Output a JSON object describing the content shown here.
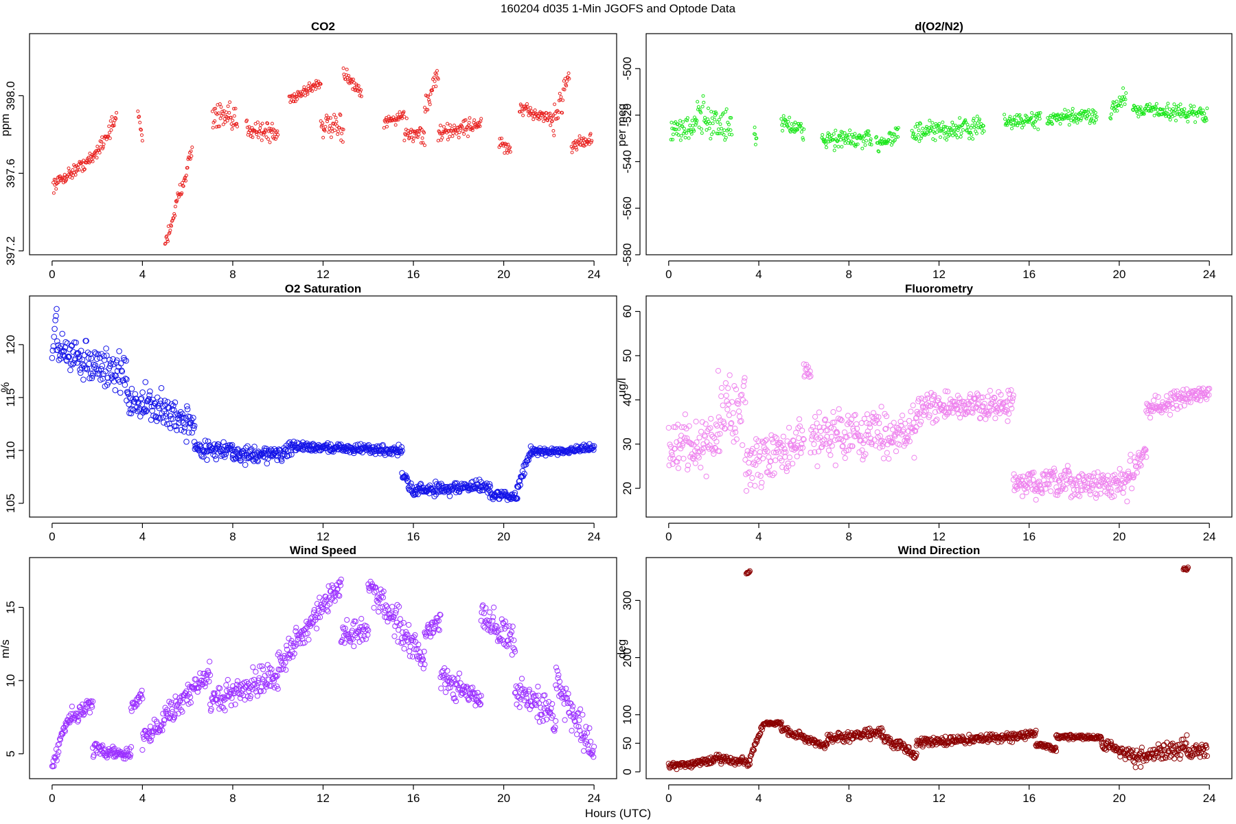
{
  "figure": {
    "title": "160204   d035   1-Min  JGOFS and Optode Data",
    "xlabel": "Hours (UTC)"
  },
  "chart_data": [
    {
      "type": "scatter",
      "title": "CO2",
      "ylabel": "ppm",
      "color": "#e8211f",
      "marker_r": 2.0,
      "xlim": [
        -1,
        25
      ],
      "ylim": [
        397.18,
        398.32
      ],
      "xticks": [
        0,
        4,
        8,
        12,
        16,
        20,
        24
      ],
      "yticks": [
        397.2,
        397.6,
        398.0
      ],
      "ytick_labels": [
        "397.2",
        "397.6",
        "398.0"
      ],
      "segments": [
        {
          "x0": 0.05,
          "x1": 1.8,
          "y0": 397.54,
          "y1": 397.68,
          "noise": 0.03
        },
        {
          "x0": 1.8,
          "x1": 2.85,
          "y0": 397.68,
          "y1": 397.88,
          "noise": 0.04
        },
        {
          "x0": 3.8,
          "x1": 4.0,
          "y0": 397.92,
          "y1": 397.78,
          "noise": 0.02
        },
        {
          "x0": 5.0,
          "x1": 6.2,
          "y0": 397.23,
          "y1": 397.72,
          "noise": 0.04
        },
        {
          "x0": 7.1,
          "x1": 8.2,
          "y0": 397.9,
          "y1": 397.86,
          "noise": 0.07
        },
        {
          "x0": 8.6,
          "x1": 10.0,
          "y0": 397.84,
          "y1": 397.8,
          "noise": 0.05
        },
        {
          "x0": 10.5,
          "x1": 11.9,
          "y0": 397.98,
          "y1": 398.07,
          "noise": 0.03
        },
        {
          "x0": 11.9,
          "x1": 12.9,
          "y0": 397.85,
          "y1": 397.82,
          "noise": 0.06
        },
        {
          "x0": 12.9,
          "x1": 13.7,
          "y0": 398.12,
          "y1": 398.0,
          "noise": 0.03
        },
        {
          "x0": 14.7,
          "x1": 15.6,
          "y0": 397.86,
          "y1": 397.9,
          "noise": 0.03
        },
        {
          "x0": 15.6,
          "x1": 16.5,
          "y0": 397.82,
          "y1": 397.8,
          "noise": 0.05
        },
        {
          "x0": 16.5,
          "x1": 17.1,
          "y0": 397.92,
          "y1": 398.12,
          "noise": 0.06
        },
        {
          "x0": 17.1,
          "x1": 19.0,
          "y0": 397.8,
          "y1": 397.86,
          "noise": 0.04
        },
        {
          "x0": 19.8,
          "x1": 20.3,
          "y0": 397.75,
          "y1": 397.72,
          "noise": 0.04
        },
        {
          "x0": 20.7,
          "x1": 22.2,
          "y0": 397.93,
          "y1": 397.88,
          "noise": 0.03
        },
        {
          "x0": 22.2,
          "x1": 22.9,
          "y0": 397.85,
          "y1": 398.12,
          "noise": 0.07
        },
        {
          "x0": 23.0,
          "x1": 23.9,
          "y0": 397.74,
          "y1": 397.78,
          "noise": 0.03
        }
      ]
    },
    {
      "type": "scatter",
      "title": "d(O2/N2)",
      "ylabel": "per meg",
      "color": "#19e619",
      "marker_r": 2.0,
      "xlim": [
        -1,
        25
      ],
      "ylim": [
        -580,
        -485
      ],
      "xticks": [
        0,
        4,
        8,
        12,
        16,
        20,
        24
      ],
      "yticks": [
        -580,
        -560,
        -540,
        -520,
        -500
      ],
      "ytick_labels": [
        "-580",
        "-560",
        "-540",
        "-520",
        "-500"
      ],
      "segments": [
        {
          "x0": 0.1,
          "x1": 1.2,
          "y0": -528,
          "y1": -524,
          "noise": 5
        },
        {
          "x0": 1.2,
          "x1": 2.8,
          "y0": -520,
          "y1": -526,
          "noise": 8
        },
        {
          "x0": 3.8,
          "x1": 3.9,
          "y0": -526,
          "y1": -532,
          "noise": 3
        },
        {
          "x0": 5.0,
          "x1": 6.0,
          "y0": -522,
          "y1": -528,
          "noise": 4
        },
        {
          "x0": 6.8,
          "x1": 9.0,
          "y0": -530,
          "y1": -531,
          "noise": 4
        },
        {
          "x0": 9.2,
          "x1": 10.2,
          "y0": -532,
          "y1": -528,
          "noise": 4
        },
        {
          "x0": 10.8,
          "x1": 14.0,
          "y0": -528,
          "y1": -525,
          "noise": 4
        },
        {
          "x0": 14.9,
          "x1": 16.5,
          "y0": -523,
          "y1": -522,
          "noise": 3
        },
        {
          "x0": 16.8,
          "x1": 19.0,
          "y0": -522,
          "y1": -520,
          "noise": 3
        },
        {
          "x0": 19.6,
          "x1": 20.3,
          "y0": -518,
          "y1": -512,
          "noise": 4
        },
        {
          "x0": 20.6,
          "x1": 23.9,
          "y0": -517,
          "y1": -520,
          "noise": 3
        }
      ]
    },
    {
      "type": "scatter",
      "title": "O2 Saturation",
      "ylabel": "%",
      "color": "#1414e8",
      "marker_r": 3.8,
      "xlim": [
        -1,
        25
      ],
      "ylim": [
        103.7,
        124.6
      ],
      "xticks": [
        0,
        4,
        8,
        12,
        16,
        20,
        24
      ],
      "yticks": [
        105,
        110,
        115,
        120
      ],
      "ytick_labels": [
        "105",
        "110",
        "115",
        "120"
      ],
      "segments": [
        {
          "x0": 0.0,
          "x1": 0.2,
          "y0": 118.7,
          "y1": 123.5,
          "noise": 0.4
        },
        {
          "x0": 0.2,
          "x1": 3.3,
          "y0": 119.5,
          "y1": 117.0,
          "noise": 1.6
        },
        {
          "x0": 3.3,
          "x1": 6.3,
          "y0": 115.0,
          "y1": 112.5,
          "noise": 1.6
        },
        {
          "x0": 6.3,
          "x1": 8.0,
          "y0": 110.2,
          "y1": 110.0,
          "noise": 0.7
        },
        {
          "x0": 8.0,
          "x1": 10.6,
          "y0": 109.5,
          "y1": 109.8,
          "noise": 0.7
        },
        {
          "x0": 10.6,
          "x1": 15.5,
          "y0": 110.4,
          "y1": 110.0,
          "noise": 0.4
        },
        {
          "x0": 15.5,
          "x1": 16.1,
          "y0": 108.0,
          "y1": 105.5,
          "noise": 0.6
        },
        {
          "x0": 16.1,
          "x1": 19.4,
          "y0": 106.3,
          "y1": 106.6,
          "noise": 0.6
        },
        {
          "x0": 19.4,
          "x1": 20.6,
          "y0": 105.8,
          "y1": 105.6,
          "noise": 0.4
        },
        {
          "x0": 20.6,
          "x1": 21.2,
          "y0": 106.5,
          "y1": 110.0,
          "noise": 0.4
        },
        {
          "x0": 21.2,
          "x1": 24.0,
          "y0": 109.8,
          "y1": 110.2,
          "noise": 0.3
        }
      ]
    },
    {
      "type": "scatter",
      "title": "Fluorometry",
      "ylabel": "ug/l",
      "color": "#ee82ee",
      "marker_r": 3.6,
      "xlim": [
        -1,
        25
      ],
      "ylim": [
        13.5,
        63.5
      ],
      "xticks": [
        0,
        4,
        8,
        12,
        16,
        20,
        24
      ],
      "yticks": [
        20,
        30,
        40,
        50,
        60
      ],
      "ytick_labels": [
        "20",
        "30",
        "40",
        "50",
        "60"
      ],
      "segments": [
        {
          "x0": 0.0,
          "x1": 2.2,
          "y0": 30,
          "y1": 30,
          "noise": 6
        },
        {
          "x0": 2.2,
          "x1": 3.4,
          "y0": 38,
          "y1": 36,
          "noise": 8
        },
        {
          "x0": 3.4,
          "x1": 6.0,
          "y0": 25,
          "y1": 30,
          "noise": 5
        },
        {
          "x0": 6.0,
          "x1": 6.3,
          "y0": 47,
          "y1": 46,
          "noise": 2
        },
        {
          "x0": 6.3,
          "x1": 11.0,
          "y0": 32,
          "y1": 33,
          "noise": 5
        },
        {
          "x0": 11.0,
          "x1": 15.3,
          "y0": 38,
          "y1": 39,
          "noise": 3
        },
        {
          "x0": 15.3,
          "x1": 20.4,
          "y0": 21,
          "y1": 21,
          "noise": 3
        },
        {
          "x0": 20.4,
          "x1": 21.2,
          "y0": 23,
          "y1": 28,
          "noise": 3
        },
        {
          "x0": 21.2,
          "x1": 24.0,
          "y0": 38,
          "y1": 42,
          "noise": 2
        }
      ]
    },
    {
      "type": "scatter",
      "title": "Wind Speed",
      "ylabel": "m/s",
      "color": "#9b30ff",
      "marker_r": 3.6,
      "xlim": [
        -1,
        25
      ],
      "ylim": [
        3.3,
        18.4
      ],
      "xticks": [
        0,
        4,
        8,
        12,
        16,
        20,
        24
      ],
      "yticks": [
        5,
        10,
        15
      ],
      "ytick_labels": [
        "5",
        "10",
        "15"
      ],
      "segments": [
        {
          "x0": 0.0,
          "x1": 0.6,
          "y0": 4.0,
          "y1": 7.0,
          "noise": 0.4
        },
        {
          "x0": 0.6,
          "x1": 1.8,
          "y0": 7.2,
          "y1": 8.5,
          "noise": 0.5
        },
        {
          "x0": 1.8,
          "x1": 3.5,
          "y0": 5.3,
          "y1": 5.0,
          "noise": 0.4
        },
        {
          "x0": 3.5,
          "x1": 4.0,
          "y0": 8.0,
          "y1": 9.0,
          "noise": 0.5
        },
        {
          "x0": 4.0,
          "x1": 7.0,
          "y0": 6.0,
          "y1": 10.5,
          "noise": 0.7
        },
        {
          "x0": 7.0,
          "x1": 10.0,
          "y0": 8.5,
          "y1": 10.5,
          "noise": 0.9
        },
        {
          "x0": 10.0,
          "x1": 12.8,
          "y0": 11.0,
          "y1": 16.5,
          "noise": 0.9
        },
        {
          "x0": 12.8,
          "x1": 14.0,
          "y0": 13.0,
          "y1": 13.5,
          "noise": 0.8
        },
        {
          "x0": 14.0,
          "x1": 16.5,
          "y0": 16.5,
          "y1": 11.5,
          "noise": 1.0
        },
        {
          "x0": 16.5,
          "x1": 17.2,
          "y0": 13.0,
          "y1": 14.0,
          "noise": 0.6
        },
        {
          "x0": 17.2,
          "x1": 19.0,
          "y0": 10.3,
          "y1": 8.5,
          "noise": 0.8
        },
        {
          "x0": 19.0,
          "x1": 20.5,
          "y0": 14.5,
          "y1": 12.5,
          "noise": 1.0
        },
        {
          "x0": 20.5,
          "x1": 22.3,
          "y0": 9.5,
          "y1": 7.5,
          "noise": 1.0
        },
        {
          "x0": 22.3,
          "x1": 24.0,
          "y0": 10.0,
          "y1": 5.0,
          "noise": 1.2
        }
      ]
    },
    {
      "type": "scatter",
      "title": "Wind Direction",
      "ylabel": "deg",
      "color": "#8b0000",
      "marker_r": 3.6,
      "xlim": [
        -1,
        25
      ],
      "ylim": [
        -12,
        375
      ],
      "xticks": [
        0,
        4,
        8,
        12,
        16,
        20,
        24
      ],
      "yticks": [
        0,
        50,
        100,
        200,
        300
      ],
      "ytick_labels": [
        "0",
        "50",
        "100",
        "200",
        "300"
      ],
      "segments": [
        {
          "x0": 0.0,
          "x1": 2.0,
          "y0": 10,
          "y1": 20,
          "noise": 6
        },
        {
          "x0": 2.0,
          "x1": 3.6,
          "y0": 25,
          "y1": 15,
          "noise": 8
        },
        {
          "x0": 3.45,
          "x1": 3.6,
          "y0": 345,
          "y1": 350,
          "noise": 4
        },
        {
          "x0": 3.6,
          "x1": 4.2,
          "y0": 25,
          "y1": 80,
          "noise": 6
        },
        {
          "x0": 4.2,
          "x1": 5.0,
          "y0": 85,
          "y1": 85,
          "noise": 3
        },
        {
          "x0": 5.0,
          "x1": 7.0,
          "y0": 75,
          "y1": 45,
          "noise": 6
        },
        {
          "x0": 7.0,
          "x1": 9.5,
          "y0": 55,
          "y1": 70,
          "noise": 8
        },
        {
          "x0": 9.5,
          "x1": 11.0,
          "y0": 60,
          "y1": 30,
          "noise": 8
        },
        {
          "x0": 11.0,
          "x1": 16.3,
          "y0": 50,
          "y1": 65,
          "noise": 7
        },
        {
          "x0": 16.3,
          "x1": 17.2,
          "y0": 50,
          "y1": 40,
          "noise": 5
        },
        {
          "x0": 17.2,
          "x1": 19.2,
          "y0": 62,
          "y1": 60,
          "noise": 4
        },
        {
          "x0": 19.2,
          "x1": 20.6,
          "y0": 50,
          "y1": 30,
          "noise": 10
        },
        {
          "x0": 20.6,
          "x1": 23.0,
          "y0": 20,
          "y1": 45,
          "noise": 15
        },
        {
          "x0": 22.85,
          "x1": 23.05,
          "y0": 355,
          "y1": 358,
          "noise": 3
        },
        {
          "x0": 23.0,
          "x1": 23.9,
          "y0": 30,
          "y1": 40,
          "noise": 12
        }
      ]
    }
  ]
}
